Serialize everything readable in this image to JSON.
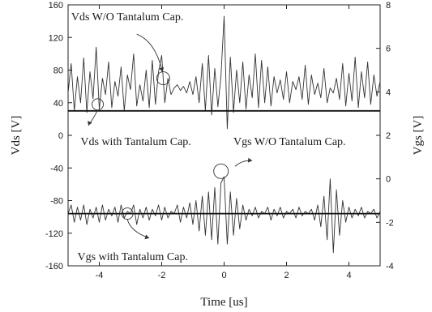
{
  "chart_data": {
    "type": "line",
    "title": "",
    "xlabel": "Time [us]",
    "ylabel_left": "Vds [V]",
    "ylabel_right": "Vgs [V]",
    "xlim": [
      -5,
      5
    ],
    "ylim_left": [
      -160,
      160
    ],
    "ylim_right": [
      -4,
      8
    ],
    "x_ticks": [
      -4,
      -2,
      0,
      2,
      4
    ],
    "y_ticks_left": [
      -160,
      -120,
      -80,
      -40,
      0,
      40,
      80,
      120,
      160
    ],
    "y_ticks_right": [
      -4,
      -2,
      0,
      2,
      4,
      6,
      8
    ],
    "grid": false,
    "series": [
      {
        "name": "Vds W/O Tantalum Cap.",
        "axis": "left",
        "color": "#333333",
        "x": [
          -5.0,
          -4.9,
          -4.8,
          -4.7,
          -4.6,
          -4.5,
          -4.4,
          -4.3,
          -4.2,
          -4.1,
          -4.0,
          -3.9,
          -3.8,
          -3.7,
          -3.6,
          -3.5,
          -3.4,
          -3.3,
          -3.2,
          -3.1,
          -3.0,
          -2.9,
          -2.8,
          -2.7,
          -2.6,
          -2.5,
          -2.4,
          -2.3,
          -2.2,
          -2.1,
          -2.0,
          -1.9,
          -1.8,
          -1.7,
          -1.6,
          -1.5,
          -1.4,
          -1.3,
          -1.2,
          -1.1,
          -1.0,
          -0.9,
          -0.8,
          -0.7,
          -0.6,
          -0.5,
          -0.4,
          -0.3,
          -0.2,
          -0.1,
          0.0,
          0.1,
          0.2,
          0.3,
          0.4,
          0.5,
          0.6,
          0.7,
          0.8,
          0.9,
          1.0,
          1.1,
          1.2,
          1.3,
          1.4,
          1.5,
          1.6,
          1.7,
          1.8,
          1.9,
          2.0,
          2.1,
          2.2,
          2.3,
          2.4,
          2.5,
          2.6,
          2.7,
          2.8,
          2.9,
          3.0,
          3.1,
          3.2,
          3.3,
          3.4,
          3.5,
          3.6,
          3.7,
          3.8,
          3.9,
          4.0,
          4.1,
          4.2,
          4.3,
          4.4,
          4.5,
          4.6,
          4.7,
          4.8,
          4.9,
          5.0
        ],
        "values": [
          52,
          88,
          30,
          72,
          40,
          95,
          28,
          78,
          45,
          108,
          32,
          70,
          50,
          90,
          34,
          66,
          48,
          84,
          30,
          74,
          56,
          100,
          36,
          62,
          42,
          80,
          34,
          92,
          38,
          78,
          98,
          40,
          70,
          50,
          58,
          62,
          55,
          60,
          52,
          66,
          50,
          72,
          40,
          88,
          30,
          98,
          25,
          82,
          35,
          72,
          146,
          8,
          96,
          28,
          80,
          40,
          90,
          32,
          74,
          46,
          100,
          34,
          92,
          40,
          84,
          36,
          72,
          52,
          68,
          44,
          78,
          40,
          66,
          56,
          72,
          44,
          86,
          38,
          74,
          50,
          64,
          46,
          82,
          40,
          58,
          52,
          70,
          44,
          88,
          36,
          76,
          42,
          96,
          34,
          78,
          46,
          90,
          38,
          74,
          48,
          66
        ]
      },
      {
        "name": "Vds with Tantalum Cap.",
        "axis": "left",
        "color": "#111111",
        "x": [
          -5,
          5
        ],
        "values": [
          30,
          30
        ]
      },
      {
        "name": "Vgs W/O Tantalum Cap.",
        "axis": "right",
        "color": "#333333",
        "x": [
          -5.0,
          -4.9,
          -4.8,
          -4.7,
          -4.6,
          -4.5,
          -4.4,
          -4.3,
          -4.2,
          -4.1,
          -4.0,
          -3.9,
          -3.8,
          -3.7,
          -3.6,
          -3.5,
          -3.4,
          -3.3,
          -3.2,
          -3.1,
          -3.0,
          -2.9,
          -2.8,
          -2.7,
          -2.6,
          -2.5,
          -2.4,
          -2.3,
          -2.2,
          -2.1,
          -2.0,
          -1.9,
          -1.8,
          -1.7,
          -1.6,
          -1.5,
          -1.4,
          -1.3,
          -1.2,
          -1.1,
          -1.0,
          -0.9,
          -0.8,
          -0.7,
          -0.6,
          -0.5,
          -0.4,
          -0.3,
          -0.2,
          -0.1,
          0.0,
          0.1,
          0.2,
          0.3,
          0.4,
          0.5,
          0.6,
          0.7,
          0.8,
          0.9,
          1.0,
          1.1,
          1.2,
          1.3,
          1.4,
          1.5,
          1.6,
          1.7,
          1.8,
          1.9,
          2.0,
          2.1,
          2.2,
          2.3,
          2.4,
          2.5,
          2.6,
          2.7,
          2.8,
          2.9,
          3.0,
          3.1,
          3.2,
          3.3,
          3.4,
          3.5,
          3.6,
          3.7,
          3.8,
          3.9,
          4.0,
          4.1,
          4.2,
          4.3,
          4.4,
          4.5,
          4.6,
          4.7,
          4.8,
          4.9,
          5.0
        ],
        "values": [
          -1.6,
          -1.2,
          -2.0,
          -1.3,
          -1.9,
          -1.2,
          -2.1,
          -1.4,
          -1.8,
          -1.3,
          -2.0,
          -1.2,
          -1.9,
          -1.4,
          -1.7,
          -1.3,
          -2.0,
          -1.2,
          -1.8,
          -1.5,
          -1.6,
          -1.2,
          -2.1,
          -1.4,
          -1.8,
          -1.3,
          -1.9,
          -1.4,
          -1.7,
          -1.2,
          -1.9,
          -1.3,
          -1.8,
          -1.5,
          -1.6,
          -1.2,
          -2.0,
          -1.3,
          -1.8,
          -1.1,
          -2.1,
          -1.0,
          -2.4,
          -0.8,
          -2.6,
          -0.6,
          -2.8,
          -0.4,
          -3.0,
          -0.2,
          0.1,
          -3.0,
          -0.6,
          -2.6,
          -0.9,
          -2.3,
          -1.2,
          -1.9,
          -1.4,
          -1.7,
          -1.3,
          -1.8,
          -1.5,
          -1.6,
          -1.3,
          -1.9,
          -1.4,
          -1.7,
          -1.3,
          -1.8,
          -1.5,
          -1.6,
          -1.4,
          -1.8,
          -1.3,
          -1.7,
          -1.5,
          -1.6,
          -1.4,
          -1.9,
          -1.2,
          -2.2,
          -0.8,
          -2.8,
          0.0,
          -3.4,
          -0.5,
          -2.6,
          -1.0,
          -2.0,
          -1.3,
          -1.8,
          -1.4,
          -1.7,
          -1.3,
          -1.8,
          -1.5,
          -1.6,
          -1.4,
          -1.8,
          -1.5
        ]
      },
      {
        "name": "Vgs with Tantalum Cap.",
        "axis": "right",
        "color": "#111111",
        "x": [
          -5,
          5
        ],
        "values": [
          -1.6,
          -1.6
        ]
      }
    ],
    "annotations": [
      {
        "text": "Vds W/O Tantalum Cap.",
        "x": -4.9,
        "y": 141
      },
      {
        "text": "Vds with Tantalum Cap.",
        "x": -4.6,
        "y": -12
      },
      {
        "text": "Vgs W/O Tantalum Cap.",
        "x": 0.3,
        "y": -12
      },
      {
        "text": "Vgs with Tantalum Cap.",
        "x": -4.7,
        "y": -153
      }
    ]
  }
}
